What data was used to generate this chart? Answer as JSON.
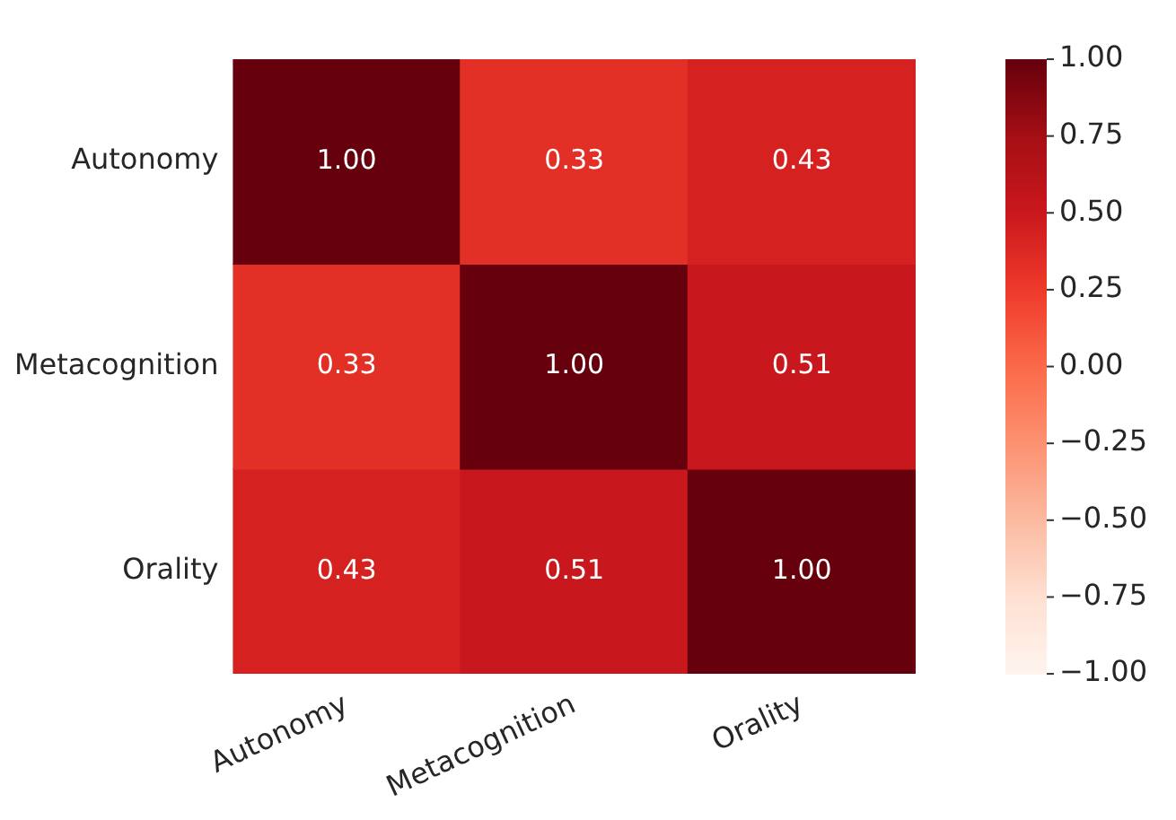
{
  "chart_data": {
    "type": "heatmap",
    "categories": [
      "Autonomy",
      "Metacognition",
      "Orality"
    ],
    "y_categories": [
      "Autonomy",
      "Metacognition",
      "Orality"
    ],
    "cells": [
      [
        1.0,
        0.33,
        0.43
      ],
      [
        0.33,
        1.0,
        0.51
      ],
      [
        0.43,
        0.51,
        1.0
      ]
    ],
    "cell_labels": [
      [
        "1.00",
        "0.33",
        "0.43"
      ],
      [
        "0.33",
        "1.00",
        "0.51"
      ],
      [
        "0.43",
        "0.51",
        "1.00"
      ]
    ],
    "clim": [
      -1,
      1
    ],
    "cticks": [
      {
        "value": -1,
        "label": "−1.00"
      },
      {
        "value": -0.75,
        "label": "−0.75"
      },
      {
        "value": -0.5,
        "label": "−0.50"
      },
      {
        "value": -0.25,
        "label": "−0.25"
      },
      {
        "value": 0,
        "label": "0.00"
      },
      {
        "value": 0.25,
        "label": "0.25"
      },
      {
        "value": 0.5,
        "label": "0.50"
      },
      {
        "value": 0.75,
        "label": "0.75"
      },
      {
        "value": 1,
        "label": "1.00"
      }
    ]
  }
}
